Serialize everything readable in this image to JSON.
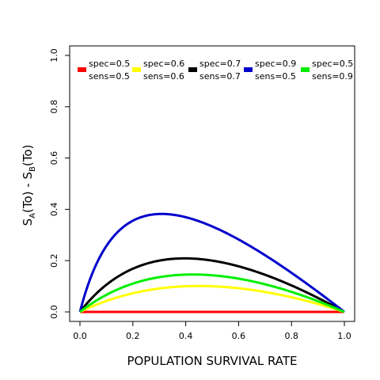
{
  "chart_data": {
    "type": "line",
    "xlabel": "POPULATION SURVIVAL RATE",
    "ylabel": {
      "prefix": "S",
      "sub_a": "A",
      "mid": "(To)  - S",
      "sub_b": "B",
      "suffix": "(To)"
    },
    "xlim": [
      0.0,
      1.0
    ],
    "ylim": [
      0.0,
      1.0
    ],
    "x_ticks": [
      "0.0",
      "0.2",
      "0.4",
      "0.6",
      "0.8",
      "1.0"
    ],
    "y_ticks": [
      "0.0",
      "0.2",
      "0.4",
      "0.6",
      "0.8",
      "1.0"
    ],
    "grid": false,
    "legend_position": "top",
    "series": [
      {
        "spec_label": "spec=0.5",
        "sens_label": "sens=0.5",
        "spec": 0.5,
        "sens": 0.5,
        "color": "#ff0000"
      },
      {
        "spec_label": "spec=0.6",
        "sens_label": "sens=0.6",
        "spec": 0.6,
        "sens": 0.6,
        "color": "#ffff00"
      },
      {
        "spec_label": "spec=0.7",
        "sens_label": "sens=0.7",
        "spec": 0.7,
        "sens": 0.7,
        "color": "#000000"
      },
      {
        "spec_label": "spec=0.9",
        "sens_label": "sens=0.5",
        "spec": 0.9,
        "sens": 0.5,
        "color": "#0000cc"
      },
      {
        "spec_label": "spec=0.5",
        "sens_label": "sens=0.9",
        "spec": 0.5,
        "sens": 0.9,
        "color": "#00ee00"
      }
    ]
  }
}
